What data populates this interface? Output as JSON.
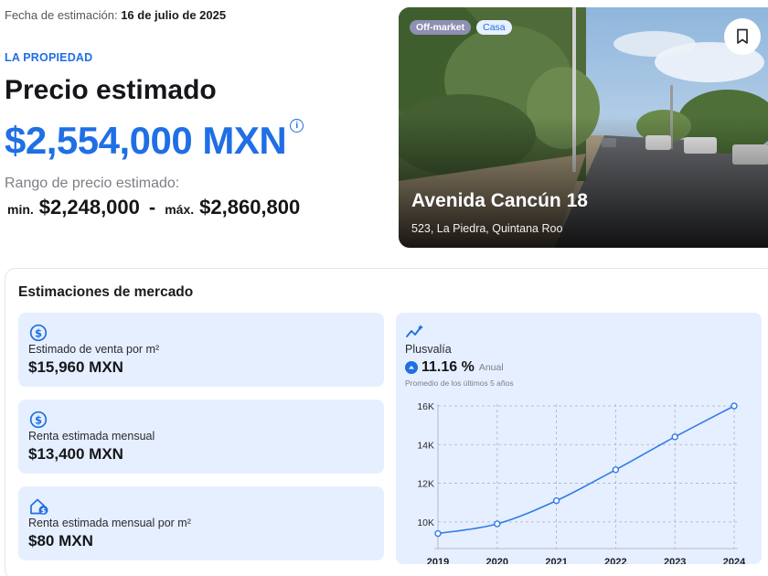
{
  "estimate_date": {
    "label": "Fecha de estimación:",
    "value": "16 de julio de 2025"
  },
  "property": {
    "kicker": "LA PROPIEDAD",
    "title": "Precio estimado",
    "price": "$2,554,000 MXN",
    "range_label": "Rango de precio estimado:",
    "min_label": "min.",
    "min_value": "$2,248,000",
    "separator": "-",
    "max_label": "máx.",
    "max_value": "$2,860,800"
  },
  "photo": {
    "badges": [
      "Off-market",
      "Casa"
    ],
    "address": "Avenida Cancún 18",
    "location": "523, La Piedra, Quintana Roo"
  },
  "market": {
    "title": "Estimaciones de mercado",
    "cards": [
      {
        "icon": "dollar-icon",
        "label": "Estimado de venta por m²",
        "value": "$15,960 MXN"
      },
      {
        "icon": "dollar-icon",
        "label": "Renta estimada mensual",
        "value": "$13,400 MXN"
      },
      {
        "icon": "house-dollar-icon",
        "label": "Renta estimada mensual por m²",
        "value": "$80 MXN"
      }
    ],
    "plusvalia": {
      "icon": "trend-sparkle-icon",
      "label": "Plusvalía",
      "rate": "11.16 %",
      "period": "Anual",
      "note": "Promedio de los últimos 5 años"
    }
  },
  "chart_data": {
    "type": "line",
    "x": [
      "2019",
      "2020",
      "2021",
      "2022",
      "2023",
      "2024"
    ],
    "series": [
      {
        "values": [
          9400,
          9900,
          11100,
          12700,
          14400,
          16000
        ]
      }
    ],
    "ylim": [
      9000,
      16000
    ],
    "yticks": [
      "10K",
      "12K",
      "14K",
      "16K"
    ],
    "ytick_values": [
      10000,
      12000,
      14000,
      16000
    ],
    "grid": true,
    "color": "#2f7be8"
  },
  "colors": {
    "accent": "#1f6fe5",
    "card_bg": "#e6efff",
    "badge_offmarket": "#8f8fb3"
  }
}
